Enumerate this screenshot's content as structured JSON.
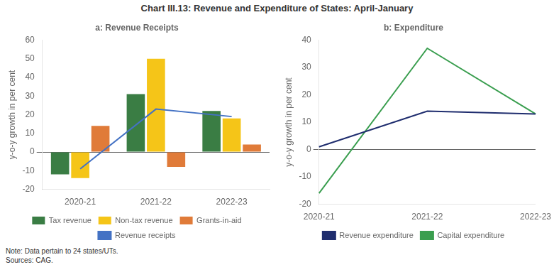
{
  "title": "Chart III.13: Revenue and Expenditure of States: April-January",
  "annotations": [
    "Note: Data pertain to 24 states/UTs.",
    "Sources: CAG."
  ],
  "chart_data": [
    {
      "type": "bar",
      "title": "a: Revenue Receipts",
      "categories": [
        "2020-21",
        "2021-22",
        "2022-23"
      ],
      "series": [
        {
          "name": "Tax revenue",
          "color": "#3a7d44",
          "values": [
            -12,
            31,
            22
          ]
        },
        {
          "name": "Non-tax revenue",
          "color": "#f5c518",
          "values": [
            -14,
            50,
            18
          ]
        },
        {
          "name": "Grants-in-aid",
          "color": "#e07b39",
          "values": [
            14,
            -8,
            4
          ]
        },
        {
          "name": "Revenue receipts",
          "type": "line",
          "marker": "none",
          "color": "#4472c4",
          "values": [
            -9,
            23,
            19
          ]
        }
      ],
      "ylabel": "y-o-y growth in per cent",
      "ylim": [
        -20,
        60
      ],
      "yticks": [
        -20,
        -10,
        0,
        10,
        20,
        30,
        40,
        50,
        60
      ],
      "grid": false,
      "legend": "bottom"
    },
    {
      "type": "line",
      "title": "b: Expenditure",
      "categories": [
        "2020-21",
        "2021-22",
        "2022-23"
      ],
      "series": [
        {
          "name": "Revenue expenditure",
          "marker": "none",
          "color": "#1f2d6e",
          "values": [
            1,
            14,
            13
          ]
        },
        {
          "name": "Capital expenditure",
          "marker": "none",
          "color": "#3a9e4f",
          "values": [
            -16,
            37,
            13
          ]
        }
      ],
      "ylabel": "y-o-y growth in per cent",
      "ylim": [
        -20,
        40
      ],
      "yticks": [
        -20,
        -10,
        0,
        10,
        20,
        30,
        40
      ],
      "grid": false,
      "legend": "bottom"
    }
  ]
}
